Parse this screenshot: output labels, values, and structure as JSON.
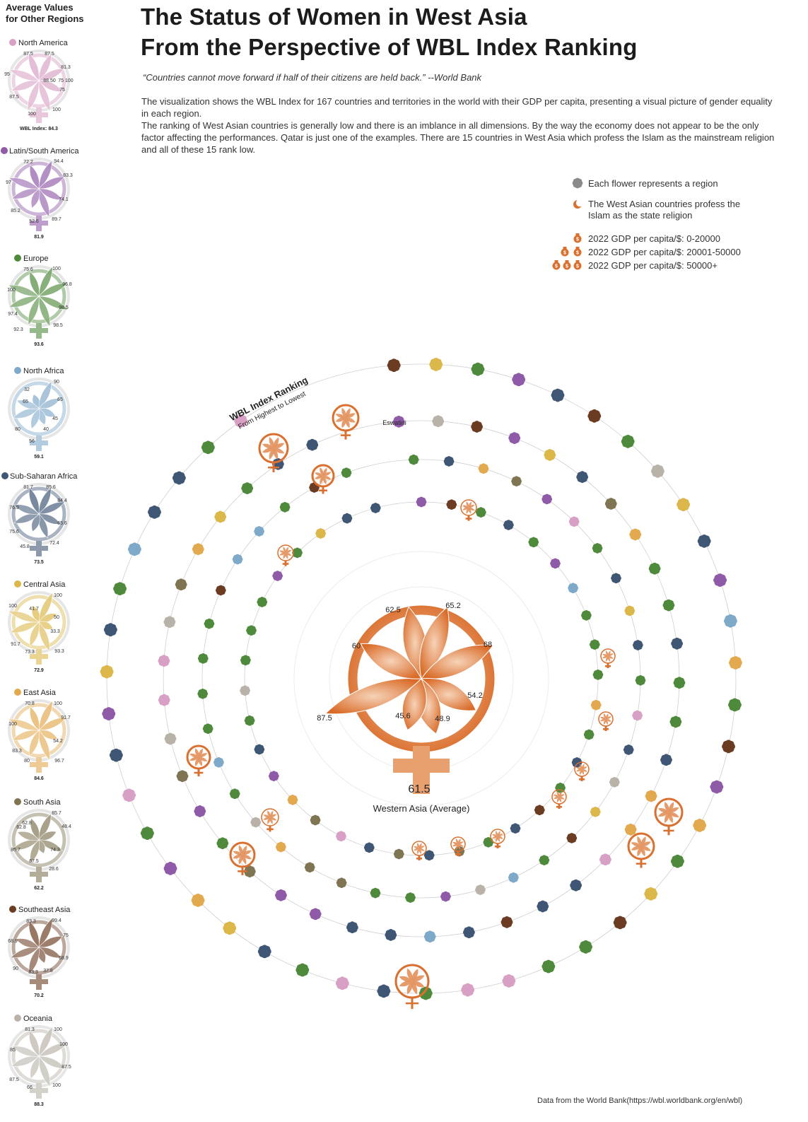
{
  "sidebar": {
    "title_lines": [
      "Average Values",
      "for Other Regions"
    ]
  },
  "header": {
    "title_lines": [
      "The Status of Women in West Asia",
      "From the Perspective of WBL Index Ranking"
    ],
    "quote": "“Countries cannot move forward if half of their citizens are held back.”  --World Bank",
    "description": [
      "The visualization shows the WBL Index for 167 countries and territories in the world with their GDP per capita, presenting a visual picture of gender equality in each region.",
      "The ranking of West Asian countries is generally low and there is an imblance in all dimensions. By the way the economy does not appear to be the only factor affecting the performances. Qatar is just one of the examples. There are 15 countries in West Asia which profess the Islam as the mainstream religion and all of these 15 rank low."
    ]
  },
  "legend": {
    "flower": "Each flower represents a region",
    "islam_lines": [
      "The West Asian countries profess the",
      "Islam as the state religion"
    ],
    "gdp": [
      "2022 GDP per capita/$: 0-20000",
      "2022 GDP per capita/$: 20001-50000",
      "2022 GDP per capita/$: 50000+"
    ],
    "colors": {
      "neutral": "#8a8a8a",
      "westasia": "#d9702f"
    }
  },
  "spiral_label": {
    "title": "WBL Index Ranking",
    "subtitle": "From Highest to Lowest",
    "highlight_country": "Eswatini"
  },
  "footer": "Data from the World Bank(https://wbl.worldbank.org/en/wbl)",
  "chart_data": {
    "type": "radial",
    "center": {
      "name": "Western Asia (Average)",
      "index": "61.5",
      "values": [
        "62.5",
        "65.2",
        "68",
        "54.2",
        "48.9",
        "45.6",
        "87.5",
        "60"
      ],
      "color": "#d9702f"
    },
    "regions": [
      {
        "name": "North America",
        "color": "#d8a0c4",
        "index": "WBL Index: 84.3",
        "values": [
          "87.5",
          "87.5",
          "81.3",
          "75",
          "100",
          "100",
          "87.5",
          "95"
        ],
        "extra": [
          "75 100",
          "88.50"
        ]
      },
      {
        "name": "Latin/South America",
        "color": "#8f5ba8",
        "index": "81.9",
        "values": [
          "72.2",
          "94.4",
          "83.3",
          "74.1",
          "89.7",
          "52.6",
          "85.2",
          "97"
        ]
      },
      {
        "name": "Europe",
        "color": "#4f8a3c",
        "index": "93.6",
        "values": [
          "75.6",
          "100",
          "96.8",
          "98.5",
          "98.5",
          "92.3",
          "97.4",
          "100"
        ]
      },
      {
        "name": "North Africa",
        "color": "#7fa9c9",
        "index": "59.1",
        "values": [
          "32",
          "90",
          "65",
          "45",
          "40",
          "56",
          "80",
          "65"
        ]
      },
      {
        "name": "Sub-Saharan Africa",
        "color": "#3f5675",
        "index": "73.5",
        "values": [
          "81.7",
          "85.6",
          "84.4",
          "65.6",
          "72.4",
          "45.8",
          "75.6",
          "76.9"
        ]
      },
      {
        "name": "Central Asia",
        "color": "#dcb74a",
        "index": "72.9",
        "values": [
          "41.7",
          "100",
          "50",
          "33.3",
          "93.3",
          "73.3",
          "91.7",
          "100"
        ]
      },
      {
        "name": "East Asia",
        "color": "#e3a94f",
        "index": "84.6",
        "values": [
          "70.8",
          "100",
          "91.7",
          "54.2",
          "96.7",
          "80",
          "83.3",
          "100"
        ]
      },
      {
        "name": "South Asia",
        "color": "#7f7553",
        "index": "62.2",
        "values": [
          "62.8",
          "85.7",
          "48.4",
          "74.3",
          "28.6",
          "67.5",
          "85.7",
          "62.8"
        ]
      },
      {
        "name": "Southeast Asia",
        "color": "#6b3c22",
        "index": "70.2",
        "values": [
          "83.3",
          "99.4",
          "75",
          "68.9",
          "37.8",
          "83.3",
          "90",
          "68.9"
        ]
      },
      {
        "name": "Oceania",
        "color": "#b8b2a8",
        "index": "88.3",
        "values": [
          "81.3",
          "100",
          "100",
          "87.5",
          "100",
          "66",
          "87.5",
          "85"
        ]
      }
    ]
  }
}
